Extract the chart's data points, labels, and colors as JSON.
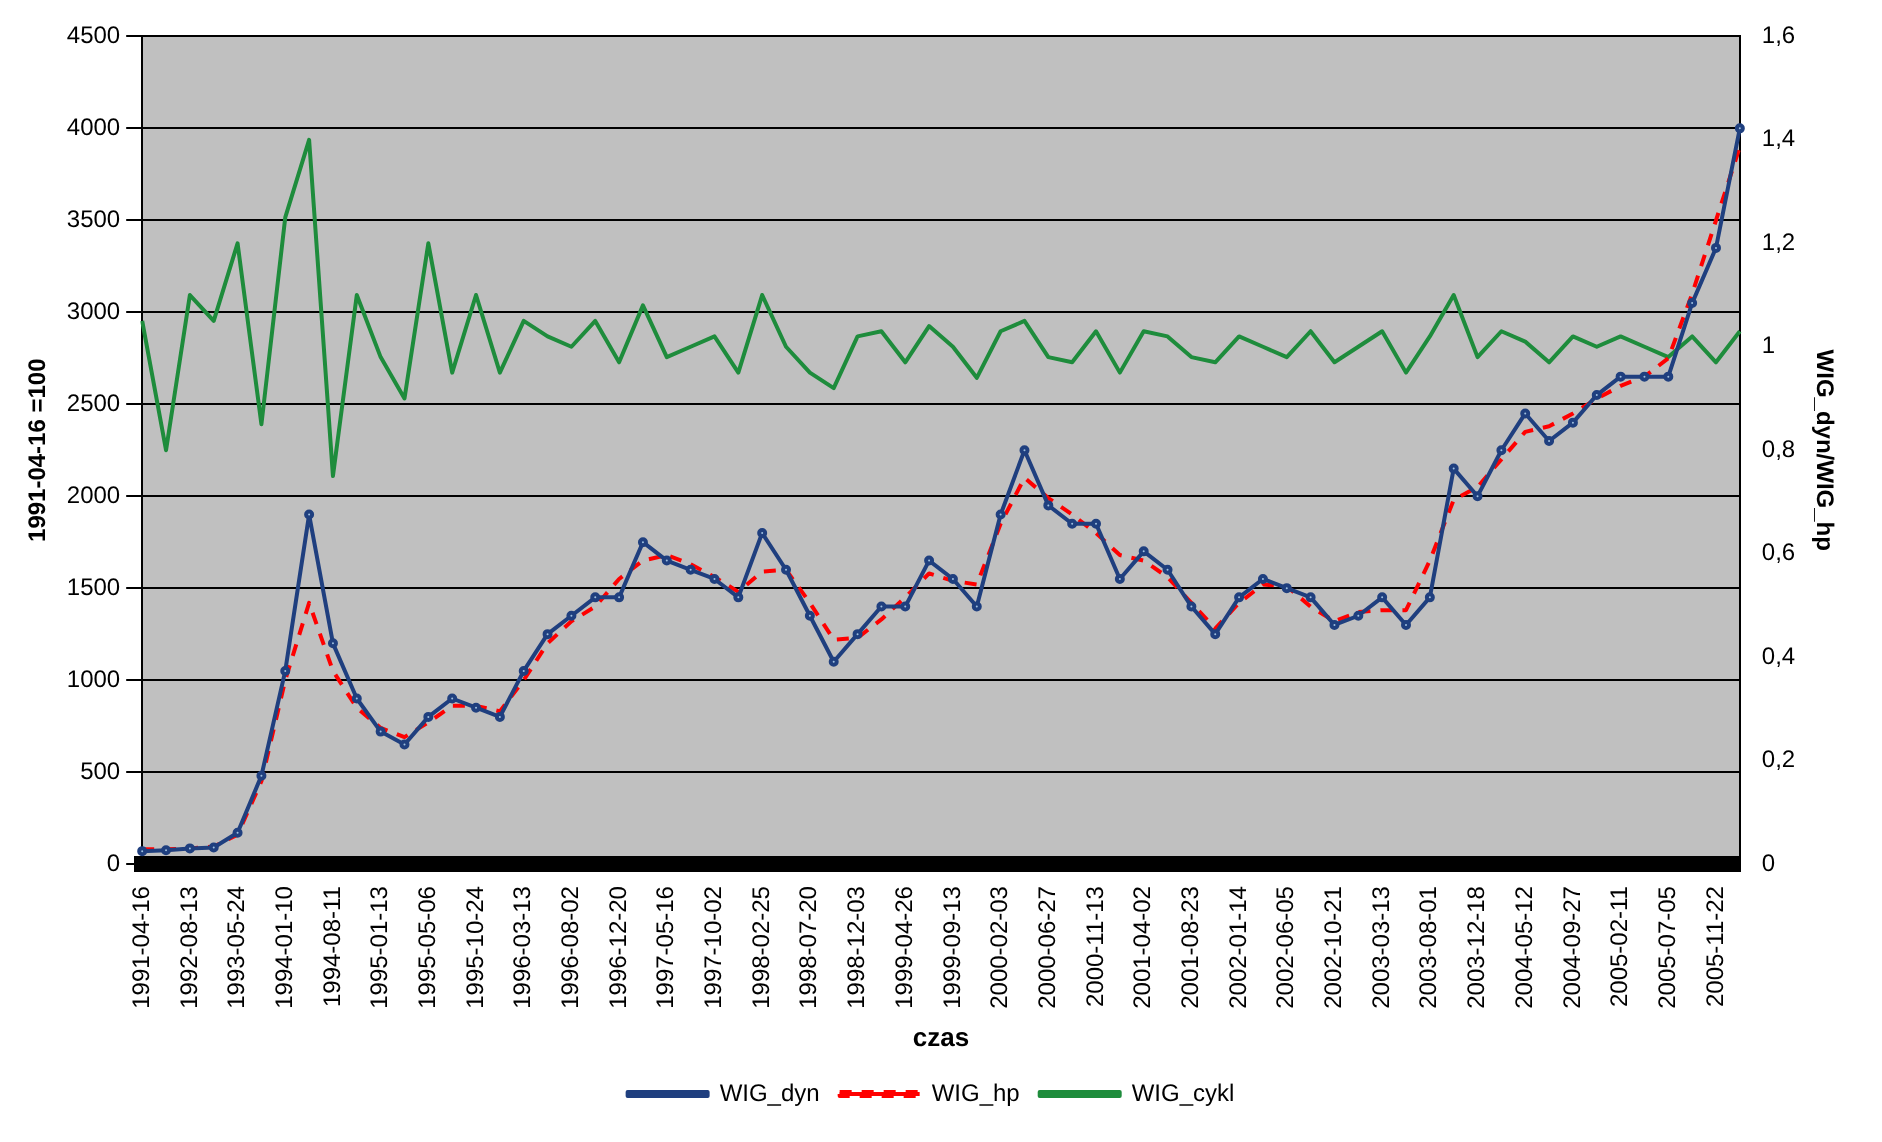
{
  "chart_data": {
    "type": "line",
    "xlabel": "czas",
    "ylabel": "1991-04-16 =100",
    "y2label": "WIG_dyn/WIG_hp",
    "categories": [
      "1991-04-16",
      null,
      "1992-08-13",
      null,
      "1993-05-24",
      null,
      "1994-01-10",
      null,
      "1994-08-11",
      null,
      "1995-01-13",
      null,
      "1995-05-06",
      null,
      "1995-10-24",
      null,
      "1996-03-13",
      null,
      "1996-08-02",
      null,
      "1996-12-20",
      null,
      "1997-05-16",
      null,
      "1997-10-02",
      null,
      "1998-02-25",
      null,
      "1998-07-20",
      null,
      "1998-12-03",
      null,
      "1999-04-26",
      null,
      "1999-09-13",
      null,
      "2000-02-03",
      null,
      "2000-06-27",
      null,
      "2000-11-13",
      null,
      "2001-04-02",
      null,
      "2001-08-23",
      null,
      "2002-01-14",
      null,
      "2002-06-05",
      null,
      "2002-10-21",
      null,
      "2003-03-13",
      null,
      "2003-08-01",
      null,
      "2003-12-18",
      null,
      "2004-05-12",
      null,
      "2004-09-27",
      null,
      "2005-02-11",
      null,
      "2005-07-05",
      null,
      "2005-11-22",
      null
    ],
    "series": [
      {
        "name": "WIG_dyn",
        "color": "#1f3f7f",
        "marker": "circle",
        "line_style": "solid",
        "values": [
          70,
          75,
          85,
          90,
          170,
          480,
          1050,
          1900,
          1200,
          900,
          720,
          650,
          800,
          900,
          850,
          800,
          1050,
          1250,
          1350,
          1450,
          1450,
          1750,
          1650,
          1600,
          1550,
          1450,
          1800,
          1600,
          1350,
          1100,
          1250,
          1400,
          1400,
          1650,
          1550,
          1400,
          1900,
          2250,
          1950,
          1850,
          1850,
          1550,
          1700,
          1600,
          1400,
          1250,
          1450,
          1550,
          1500,
          1450,
          1300,
          1350,
          1450,
          1300,
          1450,
          2150,
          2000,
          2250,
          2450,
          2300,
          2400,
          2550,
          2650,
          2650,
          2650,
          3050,
          3350,
          4000
        ]
      },
      {
        "name": "WIG_hp",
        "color": "#ff0000",
        "marker": "none",
        "line_style": "dashed",
        "values": [
          80,
          80,
          85,
          95,
          160,
          450,
          1000,
          1420,
          1050,
          850,
          740,
          690,
          770,
          860,
          860,
          830,
          1000,
          1200,
          1320,
          1400,
          1550,
          1650,
          1680,
          1630,
          1560,
          1480,
          1590,
          1600,
          1420,
          1220,
          1230,
          1330,
          1450,
          1580,
          1540,
          1520,
          1850,
          2100,
          1990,
          1900,
          1800,
          1680,
          1650,
          1560,
          1420,
          1280,
          1420,
          1520,
          1510,
          1400,
          1320,
          1370,
          1380,
          1380,
          1650,
          1980,
          2050,
          2200,
          2350,
          2380,
          2450,
          2530,
          2600,
          2650,
          2750,
          3100,
          3500,
          3900
        ]
      },
      {
        "name": "WIG_cykl",
        "color": "#1e8c3c",
        "marker": "none",
        "line_style": "solid",
        "axis": "y2",
        "values": [
          1.05,
          0.8,
          1.1,
          1.05,
          1.2,
          0.85,
          1.25,
          1.4,
          0.75,
          1.1,
          0.98,
          0.9,
          1.2,
          0.95,
          1.1,
          0.95,
          1.05,
          1.02,
          1.0,
          1.05,
          0.97,
          1.08,
          0.98,
          1.0,
          1.02,
          0.95,
          1.1,
          1.0,
          0.95,
          0.92,
          1.02,
          1.03,
          0.97,
          1.04,
          1.0,
          0.94,
          1.03,
          1.05,
          0.98,
          0.97,
          1.03,
          0.95,
          1.03,
          1.02,
          0.98,
          0.97,
          1.02,
          1.0,
          0.98,
          1.03,
          0.97,
          1.0,
          1.03,
          0.95,
          1.02,
          1.1,
          0.98,
          1.03,
          1.01,
          0.97,
          1.02,
          1.0,
          1.02,
          1.0,
          0.98,
          1.02,
          0.97,
          1.03
        ]
      }
    ],
    "ylim": [
      0,
      4500
    ],
    "yticks": [
      0,
      500,
      1000,
      1500,
      2000,
      2500,
      3000,
      3500,
      4000,
      4500
    ],
    "y2lim": [
      0,
      1.6
    ],
    "y2ticks": [
      {
        "value": 0,
        "label": "0"
      },
      {
        "value": 0.2,
        "label": "0,2"
      },
      {
        "value": 0.4,
        "label": "0,4"
      },
      {
        "value": 0.6,
        "label": "0,6"
      },
      {
        "value": 0.8,
        "label": "0,8"
      },
      {
        "value": 1,
        "label": "1"
      },
      {
        "value": 1.2,
        "label": "1,2"
      },
      {
        "value": 1.4,
        "label": "1,4"
      },
      {
        "value": 1.6,
        "label": "1,6"
      }
    ],
    "grid": "y",
    "legend": "bottom"
  }
}
